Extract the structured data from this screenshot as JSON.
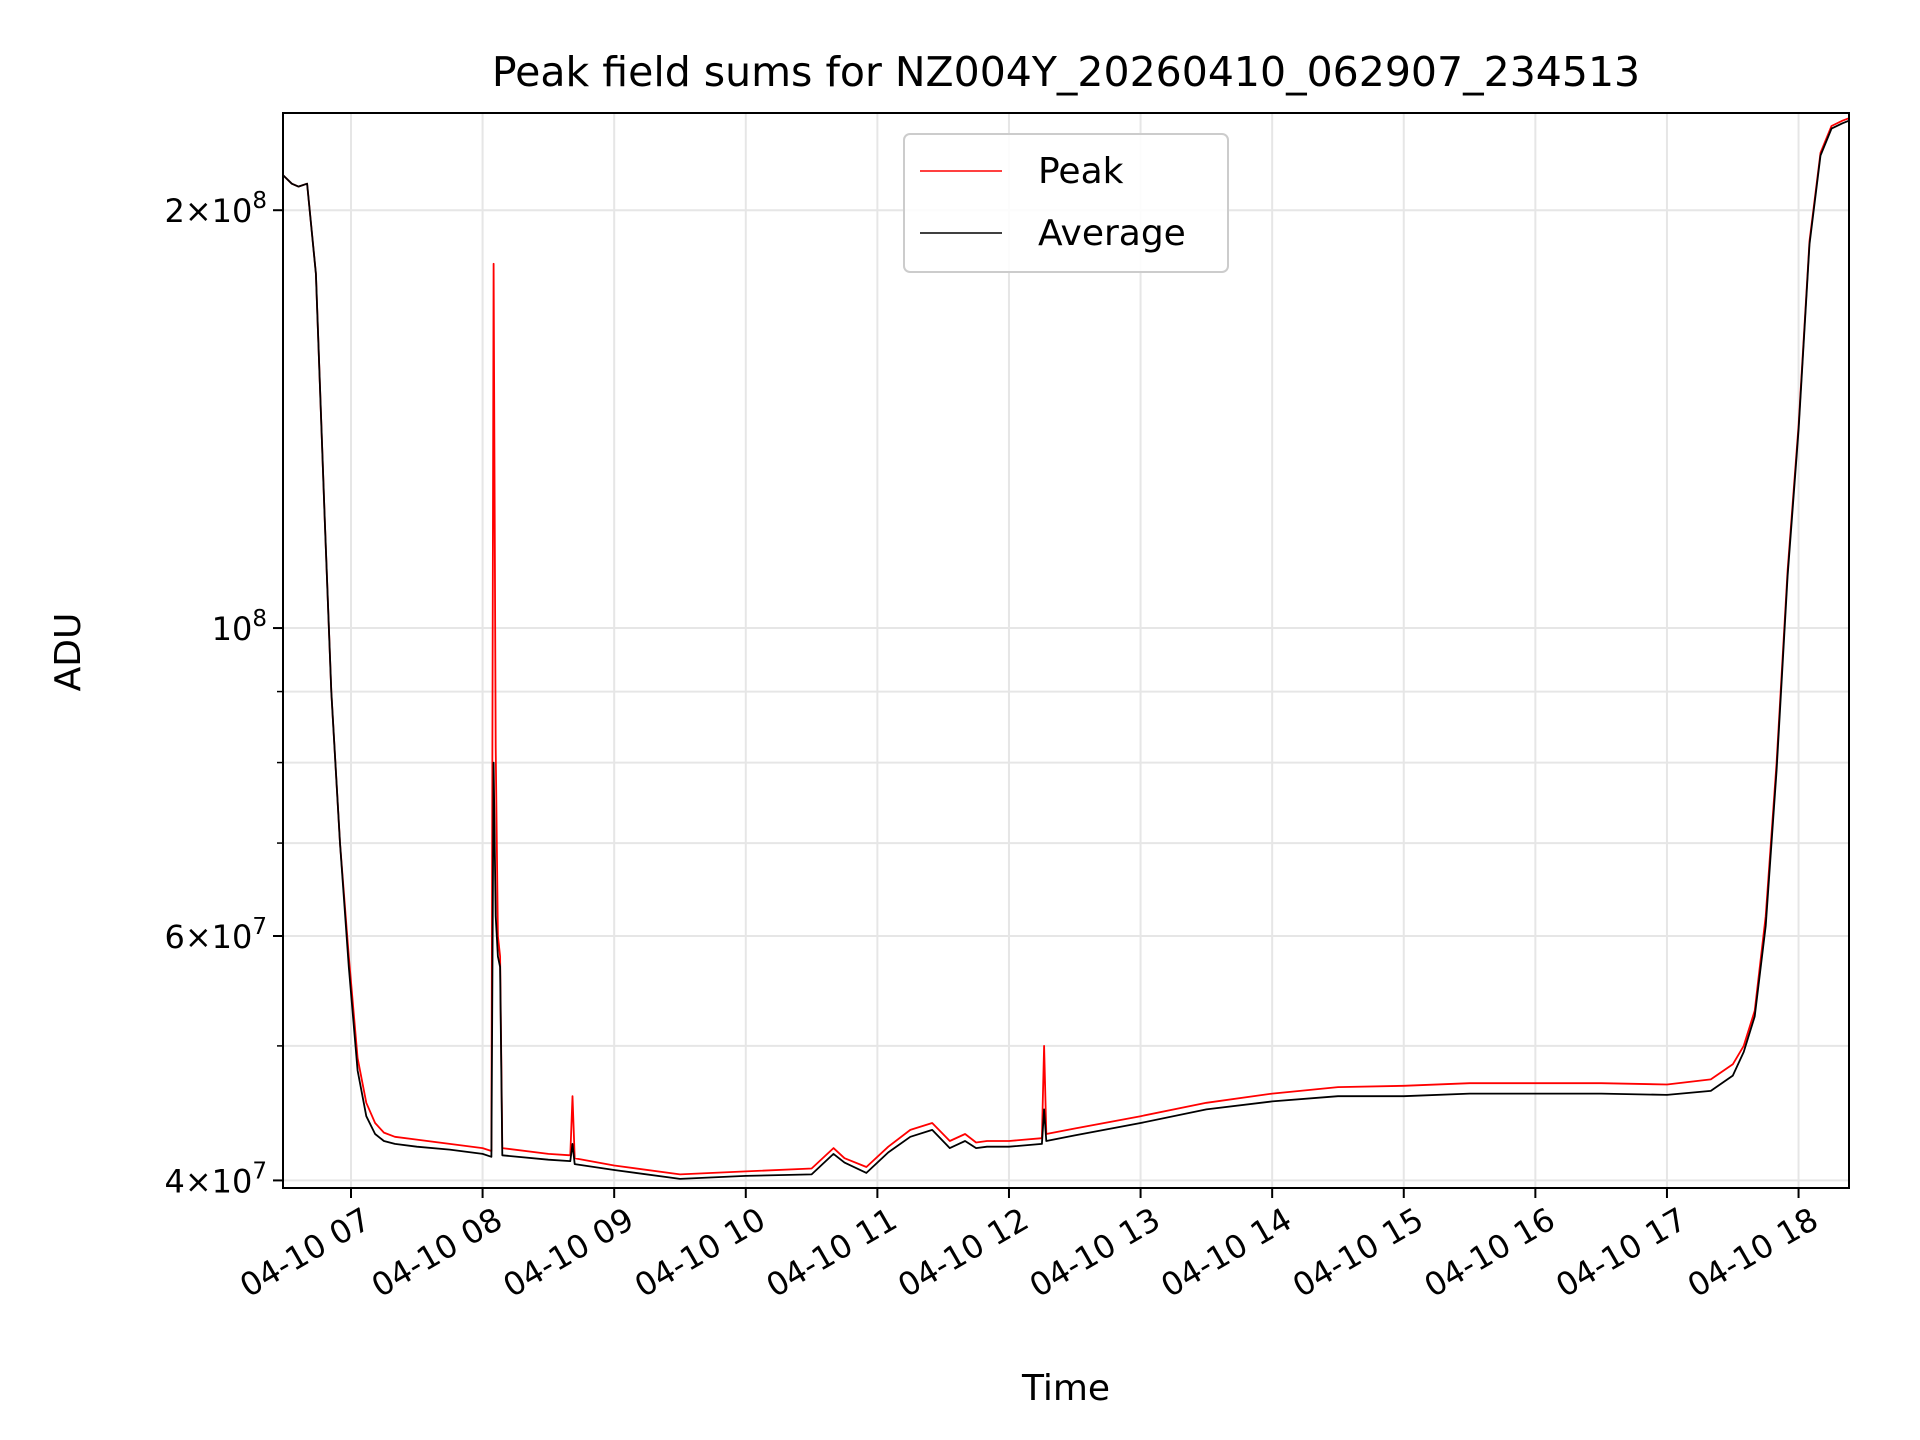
{
  "chart_data": {
    "type": "line",
    "title": "Peak field sums for NZ004Y_20260410_062907_234513",
    "xlabel": "Time",
    "ylabel": "ADU",
    "yscale": "log",
    "grid": true,
    "legend_position": "top-center",
    "xlim": [
      "2026-04-10 06:29",
      "2026-04-10 18:23"
    ],
    "ylim": [
      39500000,
      235000000
    ],
    "x_ticks": [
      {
        "time": "2026-04-10 07:00",
        "label": "04-10 07"
      },
      {
        "time": "2026-04-10 08:00",
        "label": "04-10 08"
      },
      {
        "time": "2026-04-10 09:00",
        "label": "04-10 09"
      },
      {
        "time": "2026-04-10 10:00",
        "label": "04-10 10"
      },
      {
        "time": "2026-04-10 11:00",
        "label": "04-10 11"
      },
      {
        "time": "2026-04-10 12:00",
        "label": "04-10 12"
      },
      {
        "time": "2026-04-10 13:00",
        "label": "04-10 13"
      },
      {
        "time": "2026-04-10 14:00",
        "label": "04-10 14"
      },
      {
        "time": "2026-04-10 15:00",
        "label": "04-10 15"
      },
      {
        "time": "2026-04-10 16:00",
        "label": "04-10 16"
      },
      {
        "time": "2026-04-10 17:00",
        "label": "04-10 17"
      },
      {
        "time": "2026-04-10 18:00",
        "label": "04-10 18"
      }
    ],
    "y_major_ticks": [
      {
        "value": 40000000,
        "base": "4",
        "exp": "7"
      },
      {
        "value": 60000000,
        "base": "6",
        "exp": "7"
      },
      {
        "value": 100000000,
        "base": "",
        "exp": "8"
      },
      {
        "value": 200000000,
        "base": "2",
        "exp": "8"
      }
    ],
    "y_minor_ticks": [
      50000000,
      70000000,
      80000000,
      90000000
    ],
    "series": [
      {
        "name": "Peak",
        "color": "#ff0000",
        "x": [
          "2026-04-10 06:29",
          "2026-04-10 06:33",
          "2026-04-10 06:36",
          "2026-04-10 06:40",
          "2026-04-10 06:44",
          "2026-04-10 06:48",
          "2026-04-10 06:51",
          "2026-04-10 06:55",
          "2026-04-10 06:59",
          "2026-04-10 07:03",
          "2026-04-10 07:07",
          "2026-04-10 07:11",
          "2026-04-10 07:15",
          "2026-04-10 07:20",
          "2026-04-10 07:30",
          "2026-04-10 07:45",
          "2026-04-10 08:00",
          "2026-04-10 08:04",
          "2026-04-10 08:05",
          "2026-04-10 08:06",
          "2026-04-10 08:07",
          "2026-04-10 08:08",
          "2026-04-10 08:09",
          "2026-04-10 08:30",
          "2026-04-10 08:40",
          "2026-04-10 08:41",
          "2026-04-10 08:42",
          "2026-04-10 09:00",
          "2026-04-10 09:30",
          "2026-04-10 09:45",
          "2026-04-10 10:00",
          "2026-04-10 10:30",
          "2026-04-10 10:40",
          "2026-04-10 10:45",
          "2026-04-10 10:55",
          "2026-04-10 11:05",
          "2026-04-10 11:15",
          "2026-04-10 11:25",
          "2026-04-10 11:33",
          "2026-04-10 11:40",
          "2026-04-10 11:45",
          "2026-04-10 11:50",
          "2026-04-10 12:00",
          "2026-04-10 12:15",
          "2026-04-10 12:16",
          "2026-04-10 12:17",
          "2026-04-10 12:30",
          "2026-04-10 13:00",
          "2026-04-10 13:30",
          "2026-04-10 14:00",
          "2026-04-10 14:30",
          "2026-04-10 15:00",
          "2026-04-10 15:30",
          "2026-04-10 16:00",
          "2026-04-10 16:30",
          "2026-04-10 17:00",
          "2026-04-10 17:20",
          "2026-04-10 17:30",
          "2026-04-10 17:35",
          "2026-04-10 17:40",
          "2026-04-10 17:45",
          "2026-04-10 17:50",
          "2026-04-10 17:55",
          "2026-04-10 18:00",
          "2026-04-10 18:05",
          "2026-04-10 18:10",
          "2026-04-10 18:15",
          "2026-04-10 18:20",
          "2026-04-10 18:23"
        ],
        "y": [
          212000000,
          209000000,
          208000000,
          209000000,
          180000000,
          120000000,
          90000000,
          70000000,
          58000000,
          49000000,
          45500000,
          44000000,
          43300000,
          43000000,
          42800000,
          42500000,
          42200000,
          42000000,
          183000000,
          82000000,
          60000000,
          58000000,
          42200000,
          41800000,
          41700000,
          46000000,
          41500000,
          41000000,
          40400000,
          40500000,
          40600000,
          40800000,
          42200000,
          41500000,
          40900000,
          42300000,
          43500000,
          44000000,
          42700000,
          43200000,
          42600000,
          42700000,
          42700000,
          42900000,
          50000000,
          43200000,
          43600000,
          44500000,
          45500000,
          46200000,
          46700000,
          46800000,
          47000000,
          47000000,
          47000000,
          46900000,
          47300000,
          48500000,
          50000000,
          53000000,
          62000000,
          80000000,
          110000000,
          140000000,
          190000000,
          220000000,
          230000000,
          232000000,
          233000000
        ]
      },
      {
        "name": "Average",
        "color": "#000000",
        "x": [
          "2026-04-10 06:29",
          "2026-04-10 06:33",
          "2026-04-10 06:36",
          "2026-04-10 06:40",
          "2026-04-10 06:44",
          "2026-04-10 06:48",
          "2026-04-10 06:51",
          "2026-04-10 06:55",
          "2026-04-10 06:59",
          "2026-04-10 07:03",
          "2026-04-10 07:07",
          "2026-04-10 07:11",
          "2026-04-10 07:15",
          "2026-04-10 07:20",
          "2026-04-10 07:30",
          "2026-04-10 07:45",
          "2026-04-10 08:00",
          "2026-04-10 08:04",
          "2026-04-10 08:05",
          "2026-04-10 08:06",
          "2026-04-10 08:07",
          "2026-04-10 08:08",
          "2026-04-10 08:09",
          "2026-04-10 08:30",
          "2026-04-10 08:40",
          "2026-04-10 08:41",
          "2026-04-10 08:42",
          "2026-04-10 09:00",
          "2026-04-10 09:30",
          "2026-04-10 09:45",
          "2026-04-10 10:00",
          "2026-04-10 10:30",
          "2026-04-10 10:40",
          "2026-04-10 10:45",
          "2026-04-10 10:55",
          "2026-04-10 11:05",
          "2026-04-10 11:15",
          "2026-04-10 11:25",
          "2026-04-10 11:33",
          "2026-04-10 11:40",
          "2026-04-10 11:45",
          "2026-04-10 11:50",
          "2026-04-10 12:00",
          "2026-04-10 12:15",
          "2026-04-10 12:16",
          "2026-04-10 12:17",
          "2026-04-10 12:30",
          "2026-04-10 13:00",
          "2026-04-10 13:30",
          "2026-04-10 14:00",
          "2026-04-10 14:30",
          "2026-04-10 15:00",
          "2026-04-10 15:30",
          "2026-04-10 16:00",
          "2026-04-10 16:30",
          "2026-04-10 17:00",
          "2026-04-10 17:20",
          "2026-04-10 17:30",
          "2026-04-10 17:35",
          "2026-04-10 17:40",
          "2026-04-10 17:45",
          "2026-04-10 17:50",
          "2026-04-10 17:55",
          "2026-04-10 18:00",
          "2026-04-10 18:05",
          "2026-04-10 18:10",
          "2026-04-10 18:15",
          "2026-04-10 18:20",
          "2026-04-10 18:23"
        ],
        "y": [
          212000000,
          209000000,
          208000000,
          209000000,
          180000000,
          120000000,
          90000000,
          70000000,
          57000000,
          48000000,
          44500000,
          43200000,
          42700000,
          42500000,
          42300000,
          42100000,
          41800000,
          41600000,
          80000000,
          62000000,
          58000000,
          57000000,
          41700000,
          41400000,
          41300000,
          42500000,
          41100000,
          40700000,
          40100000,
          40200000,
          40300000,
          40400000,
          41800000,
          41200000,
          40500000,
          41900000,
          43000000,
          43500000,
          42200000,
          42700000,
          42200000,
          42300000,
          42300000,
          42500000,
          45000000,
          42700000,
          43100000,
          44000000,
          45000000,
          45600000,
          46000000,
          46000000,
          46200000,
          46200000,
          46200000,
          46100000,
          46400000,
          47600000,
          49500000,
          52500000,
          61000000,
          79000000,
          109000000,
          139000000,
          189000000,
          219000000,
          229000000,
          231000000,
          232000000
        ]
      }
    ]
  }
}
